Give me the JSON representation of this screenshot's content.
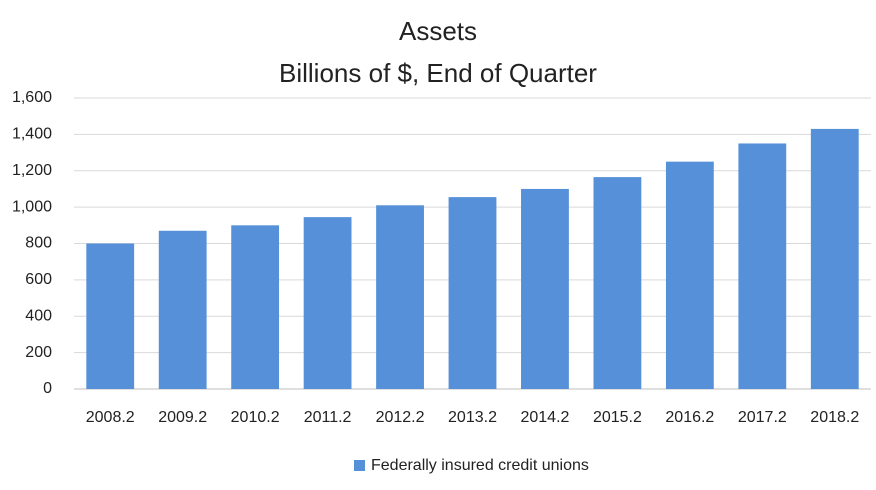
{
  "chart_data": {
    "type": "bar",
    "title": "Assets",
    "subtitle": "Billions of $, End of Quarter",
    "categories": [
      "2008.2",
      "2009.2",
      "2010.2",
      "2011.2",
      "2012.2",
      "2013.2",
      "2014.2",
      "2015.2",
      "2016.2",
      "2017.2",
      "2018.2"
    ],
    "series": [
      {
        "name": "Federally insured credit unions",
        "color": "#5590d9",
        "values": [
          800,
          870,
          900,
          945,
          1010,
          1055,
          1100,
          1165,
          1250,
          1350,
          1430
        ]
      }
    ],
    "ylim": [
      0,
      1600
    ],
    "yticks": [
      0,
      200,
      400,
      600,
      800,
      {
        "value": 1000,
        "label": "1,000"
      },
      {
        "value": 1200,
        "label": "1,200"
      },
      {
        "value": 1400,
        "label": "1,400"
      },
      {
        "value": 1600,
        "label": "1,600"
      }
    ],
    "grid": true,
    "legend": "bottom"
  }
}
